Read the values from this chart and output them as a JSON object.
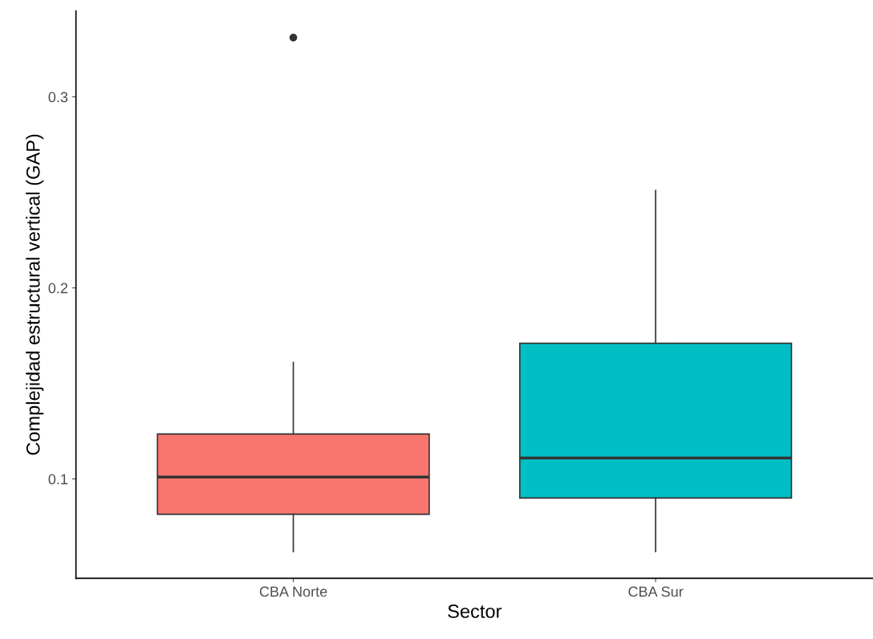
{
  "chart_data": {
    "type": "box",
    "xlabel": "Sector",
    "ylabel": "Complejidad estructural vertical (GAP)",
    "categories": [
      "CBA Norte",
      "CBA Sur"
    ],
    "colors": [
      "#f8766d",
      "#00bfc4"
    ],
    "boxes": [
      {
        "low": 0.062,
        "q1": 0.0815,
        "median": 0.101,
        "q3": 0.1235,
        "high": 0.161,
        "outliers": [
          0.331
        ]
      },
      {
        "low": 0.062,
        "q1": 0.09,
        "median": 0.111,
        "q3": 0.171,
        "high": 0.251
      }
    ],
    "ylim": [
      0.048,
      0.345
    ],
    "yticks": [
      0.1,
      0.2,
      0.3
    ],
    "grid": false,
    "legend": false
  }
}
